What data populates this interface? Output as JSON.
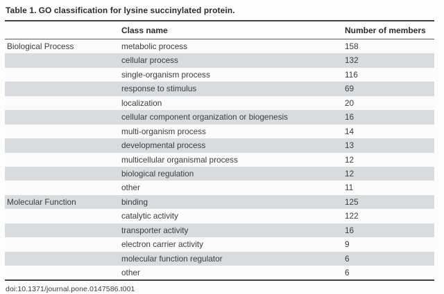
{
  "title": {
    "label": "Table 1.",
    "text": "GO classification for lysine succinylated protein."
  },
  "table": {
    "columns": {
      "category": "",
      "class_name": "Class name",
      "members": "Number of members"
    },
    "rows": [
      {
        "category": "Biological Process",
        "class_name": "metabolic process",
        "members": "158"
      },
      {
        "category": "",
        "class_name": "cellular process",
        "members": "132"
      },
      {
        "category": "",
        "class_name": "single-organism process",
        "members": "116"
      },
      {
        "category": "",
        "class_name": "response to stimulus",
        "members": "69"
      },
      {
        "category": "",
        "class_name": "localization",
        "members": "20"
      },
      {
        "category": "",
        "class_name": "cellular component organization or biogenesis",
        "members": "16"
      },
      {
        "category": "",
        "class_name": "multi-organism process",
        "members": "14"
      },
      {
        "category": "",
        "class_name": "developmental process",
        "members": "13"
      },
      {
        "category": "",
        "class_name": "multicellular organismal process",
        "members": "12"
      },
      {
        "category": "",
        "class_name": "biological regulation",
        "members": "12"
      },
      {
        "category": "",
        "class_name": "other",
        "members": "11"
      },
      {
        "category": "Molecular Function",
        "class_name": "binding",
        "members": "125"
      },
      {
        "category": "",
        "class_name": "catalytic activity",
        "members": "122"
      },
      {
        "category": "",
        "class_name": "transporter activity",
        "members": "16"
      },
      {
        "category": "",
        "class_name": "electron carrier activity",
        "members": "9"
      },
      {
        "category": "",
        "class_name": "molecular function regulator",
        "members": "6"
      },
      {
        "category": "",
        "class_name": "other",
        "members": "6"
      }
    ]
  },
  "footer": {
    "doi": "doi:10.1371/journal.pone.0147586.t001"
  },
  "colors": {
    "stripe": "#d9dbdc",
    "rule": "#3f3f3f",
    "text": "#3c3c3c"
  }
}
